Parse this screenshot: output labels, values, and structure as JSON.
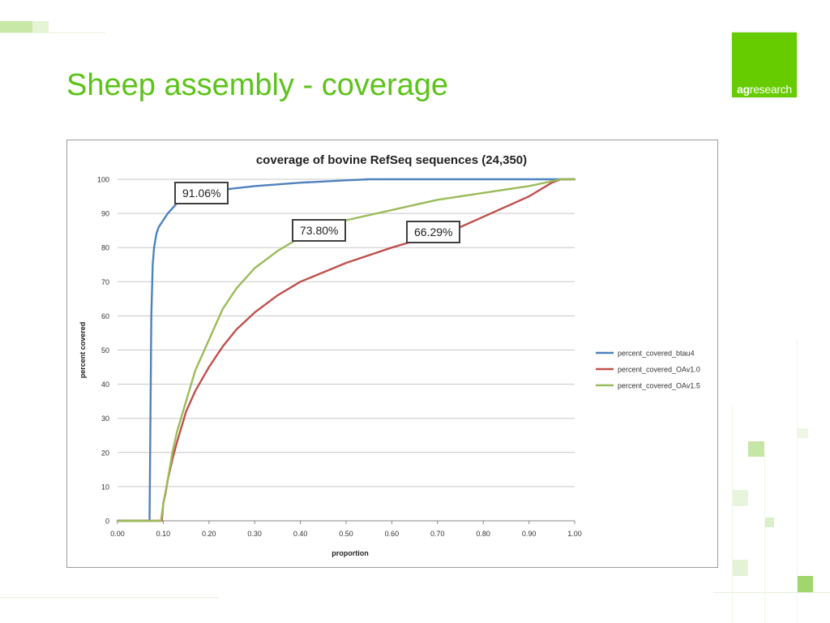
{
  "slide": {
    "title": "Sheep assembly - coverage",
    "logo": {
      "bold": "ag",
      "rest": "research",
      "color": "#66cc00"
    }
  },
  "colors": {
    "accent": "#5cc31a",
    "btau4": "#4f81bd",
    "OAv1.0": "#c0504d",
    "OAv1.5": "#9bbb59"
  },
  "callouts": {
    "btau4": "91.06%",
    "OAv1_5": "73.80%",
    "OAv1_0": "66.29%"
  },
  "chart_data": {
    "type": "line",
    "title": "coverage of bovine RefSeq sequences (24,350)",
    "xlabel": "proportion",
    "ylabel": "percent covered",
    "xlim": [
      0,
      1
    ],
    "ylim": [
      0,
      100
    ],
    "xticks": [
      "0.00",
      "0.10",
      "0.20",
      "0.30",
      "0.40",
      "0.50",
      "0.60",
      "0.70",
      "0.80",
      "0.90",
      "1.00"
    ],
    "yticks": [
      "0",
      "10",
      "20",
      "30",
      "40",
      "50",
      "60",
      "70",
      "80",
      "90",
      "100"
    ],
    "grid": true,
    "legend_position": "right",
    "series": [
      {
        "name": "percent_covered_btau4",
        "color": "#4f81bd",
        "x": [
          0.0,
          0.07,
          0.072,
          0.074,
          0.077,
          0.08,
          0.085,
          0.09,
          0.1,
          0.11,
          0.12,
          0.13,
          0.15,
          0.2,
          0.3,
          0.4,
          0.5,
          0.55,
          0.7,
          1.0
        ],
        "y": [
          0,
          0,
          30,
          60,
          75,
          80,
          84,
          86,
          88,
          90,
          91.5,
          93,
          95,
          96.5,
          98,
          99,
          99.7,
          100,
          100,
          100
        ]
      },
      {
        "name": "percent_covered_OAv1.0",
        "color": "#c0504d",
        "x": [
          0.0,
          0.097,
          0.1,
          0.105,
          0.11,
          0.12,
          0.13,
          0.15,
          0.17,
          0.2,
          0.23,
          0.26,
          0.3,
          0.35,
          0.4,
          0.5,
          0.6,
          0.7,
          0.75,
          0.8,
          0.85,
          0.9,
          0.95,
          0.97,
          1.0
        ],
        "y": [
          0,
          0,
          5,
          8,
          12,
          18,
          23,
          32,
          38,
          45,
          51,
          56,
          61,
          66,
          70,
          75.5,
          80,
          84,
          86,
          89,
          92,
          95,
          99,
          100,
          100
        ]
      },
      {
        "name": "percent_covered_OAv1.5",
        "color": "#9bbb59",
        "x": [
          0.0,
          0.095,
          0.1,
          0.11,
          0.12,
          0.13,
          0.15,
          0.17,
          0.2,
          0.23,
          0.26,
          0.3,
          0.35,
          0.4,
          0.5,
          0.6,
          0.7,
          0.8,
          0.9,
          0.97,
          1.0
        ],
        "y": [
          0,
          0,
          5,
          12,
          20,
          26,
          35,
          44,
          53,
          62,
          68,
          74,
          79,
          83,
          88,
          91,
          94,
          96,
          98,
          100,
          100
        ]
      }
    ]
  }
}
